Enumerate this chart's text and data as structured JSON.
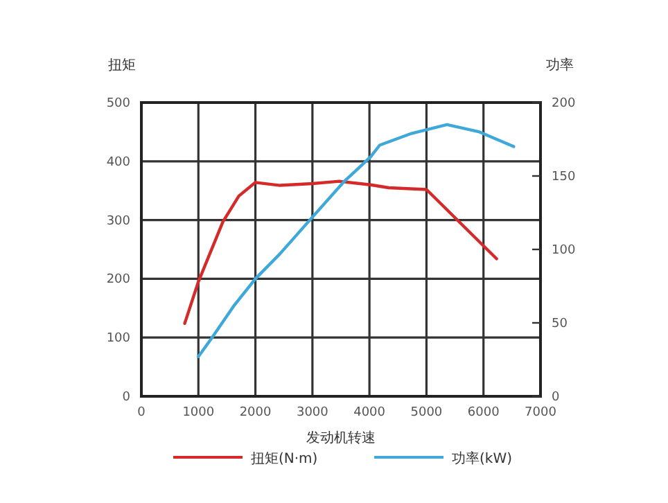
{
  "chart_data": {
    "type": "line",
    "xlabel": "发动机转速",
    "ylabel": "扭矩",
    "y2label": "功率",
    "xlim": [
      0,
      7000
    ],
    "xticks": [
      0,
      1000,
      2000,
      3000,
      4000,
      5000,
      6000,
      7000
    ],
    "ylim": [
      0,
      500
    ],
    "yticks": [
      0,
      100,
      200,
      300,
      400,
      500
    ],
    "y2lim": [
      0,
      200
    ],
    "y2ticks": [
      0,
      50,
      100,
      150,
      200
    ],
    "grid": true,
    "legend": "bottom",
    "line_style": "solid",
    "series": [
      {
        "name": "扭矩(N·m)",
        "color": "#d42a2a",
        "x": [
          760,
          1000,
          1430,
          1710,
          2000,
          2430,
          3000,
          3470,
          4020,
          4340,
          5000,
          6230
        ],
        "values": [
          124,
          195,
          297,
          341,
          364,
          359,
          362,
          366,
          360,
          355,
          352,
          234
        ]
      },
      {
        "name": "功率(kW)",
        "color": "#3ea8d8",
        "axis": "y2",
        "x": [
          1000,
          1240,
          1630,
          2000,
          2430,
          3000,
          3550,
          4020,
          4180,
          4740,
          5360,
          5930,
          6530
        ],
        "values": [
          27,
          40,
          62,
          80,
          97,
          122,
          146,
          163,
          171,
          179,
          185,
          180,
          170
        ]
      }
    ]
  }
}
